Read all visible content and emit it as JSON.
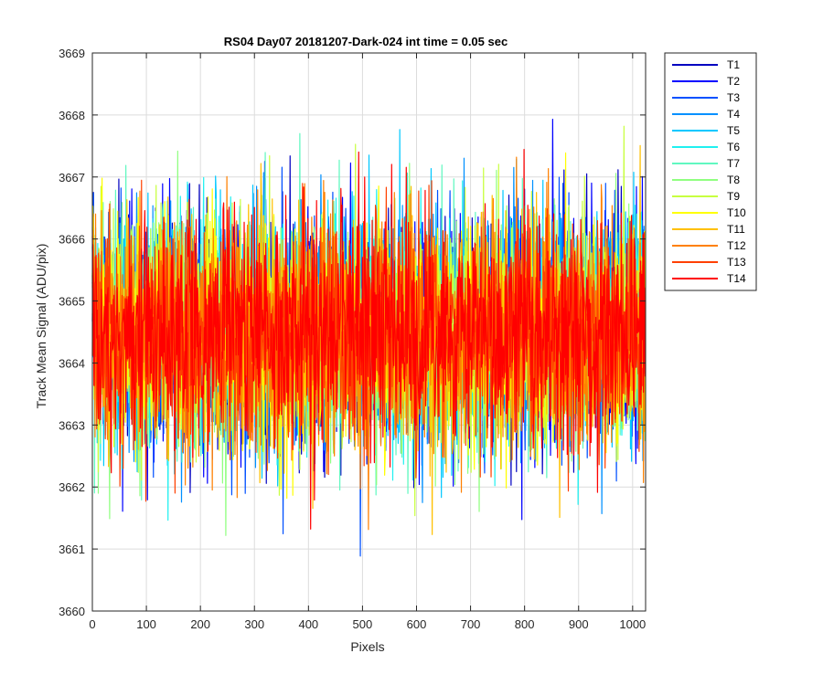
{
  "chart_data": {
    "type": "line",
    "title": "RS04 Day07 20181207-Dark-024 int time = 0.05 sec",
    "xlabel": "Pixels",
    "ylabel": "Track Mean Signal (ADU/pix)",
    "xlim": [
      0,
      1024
    ],
    "ylim": [
      3660,
      3669
    ],
    "xticks": [
      0,
      100,
      200,
      300,
      400,
      500,
      600,
      700,
      800,
      900,
      1000
    ],
    "yticks": [
      3660,
      3661,
      3662,
      3663,
      3664,
      3665,
      3666,
      3667,
      3668,
      3669
    ],
    "grid": true,
    "legend_position": "outside-top-right",
    "num_points": 1024,
    "mean_level": 3664.5,
    "noise_std": 0.9,
    "series": [
      {
        "name": "T1",
        "color": "#0000c0",
        "mean": 3664.5
      },
      {
        "name": "T2",
        "color": "#0000ff",
        "mean": 3664.5
      },
      {
        "name": "T3",
        "color": "#0050ff",
        "mean": 3664.5
      },
      {
        "name": "T4",
        "color": "#0090ff",
        "mean": 3664.5
      },
      {
        "name": "T5",
        "color": "#00c8ff",
        "mean": 3664.5
      },
      {
        "name": "T6",
        "color": "#20f0f0",
        "mean": 3664.5
      },
      {
        "name": "T7",
        "color": "#60f8c0",
        "mean": 3664.5
      },
      {
        "name": "T8",
        "color": "#90ff80",
        "mean": 3664.5
      },
      {
        "name": "T9",
        "color": "#c8ff40",
        "mean": 3664.5
      },
      {
        "name": "T10",
        "color": "#ffff00",
        "mean": 3664.5
      },
      {
        "name": "T11",
        "color": "#ffc000",
        "mean": 3664.5
      },
      {
        "name": "T12",
        "color": "#ff8000",
        "mean": 3664.5
      },
      {
        "name": "T13",
        "color": "#ff4000",
        "mean": 3664.5
      },
      {
        "name": "T14",
        "color": "#ff0000",
        "mean": 3664.5
      }
    ]
  }
}
